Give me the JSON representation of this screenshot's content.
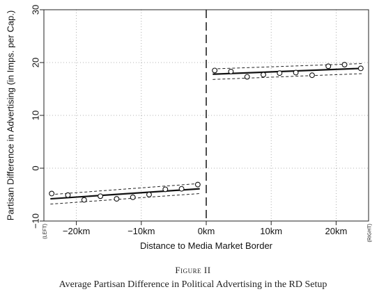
{
  "figure": {
    "label": "Figure II",
    "title": "Average Partisan Difference in Political Advertising in the RD Setup"
  },
  "chart_data": {
    "type": "scatter",
    "xlabel": "Distance to Media Market Border",
    "ylabel": "Partisan Difference in Advertising (in Imps. per Cap.)",
    "xlim": [
      -25,
      25
    ],
    "ylim": [
      -10,
      30
    ],
    "x_ticks": [
      {
        "value": -20,
        "label": "−20km"
      },
      {
        "value": -10,
        "label": "−10km"
      },
      {
        "value": 0,
        "label": "0km"
      },
      {
        "value": 10,
        "label": "10km"
      },
      {
        "value": 20,
        "label": "20km"
      }
    ],
    "y_ticks": [
      {
        "value": -10,
        "label": "−10"
      },
      {
        "value": 0,
        "label": "0"
      },
      {
        "value": 10,
        "label": "10"
      },
      {
        "value": 20,
        "label": "20"
      },
      {
        "value": 30,
        "label": "30"
      }
    ],
    "left_end_label": "(LEFT)",
    "right_end_label": "(RIGHT)",
    "grid": true,
    "cutoff": 0,
    "left_points": {
      "x": [
        -23.8,
        -21.3,
        -18.8,
        -16.3,
        -13.8,
        -11.3,
        -8.8,
        -6.3,
        -3.8,
        -1.3
      ],
      "y": [
        -4.8,
        -5.1,
        -6.0,
        -5.3,
        -5.8,
        -5.5,
        -5.0,
        -4.0,
        -3.9,
        -3.1
      ]
    },
    "right_points": {
      "x": [
        1.3,
        3.8,
        6.3,
        8.8,
        11.3,
        13.8,
        16.3,
        18.8,
        21.3,
        23.8
      ],
      "y": [
        18.5,
        18.3,
        17.3,
        17.7,
        18.0,
        18.1,
        17.6,
        19.3,
        19.6,
        18.9
      ]
    },
    "left_fit": {
      "x": [
        -24,
        -1
      ],
      "y": [
        -5.8,
        -3.9
      ]
    },
    "left_ci_upper": {
      "x": [
        -24,
        -1
      ],
      "y": [
        -5.0,
        -2.9
      ]
    },
    "left_ci_lower": {
      "x": [
        -24,
        -1
      ],
      "y": [
        -6.8,
        -4.8
      ]
    },
    "right_fit": {
      "x": [
        1,
        24
      ],
      "y": [
        17.8,
        18.9
      ]
    },
    "right_ci_upper": {
      "x": [
        1,
        24
      ],
      "y": [
        18.8,
        19.8
      ]
    },
    "right_ci_lower": {
      "x": [
        1,
        24
      ],
      "y": [
        16.8,
        17.9
      ]
    }
  }
}
